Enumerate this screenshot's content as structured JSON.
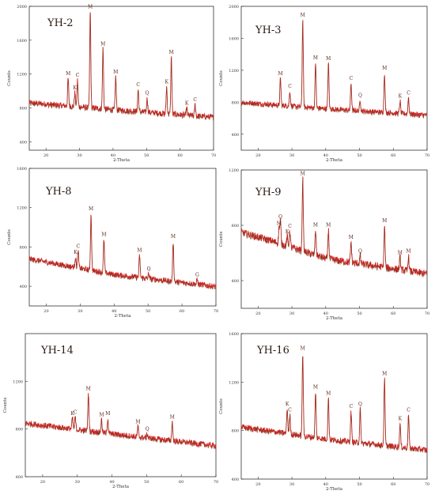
{
  "colors": {
    "pattern_main": "#d62828",
    "pattern_dark": "#6b3a1a",
    "frame": "#333333",
    "label": "#5a2a1a"
  },
  "chart_data": [
    {
      "type": "line",
      "title": "YH-2",
      "xlabel": "2-Theta",
      "ylabel": "Counts",
      "xlim": [
        15,
        70
      ],
      "ylim": [
        300,
        2000
      ],
      "x_ticks": [
        20,
        30,
        40,
        50,
        60,
        70
      ],
      "y_ticks": [
        400,
        800,
        1200,
        1600,
        2000
      ],
      "baseline": [
        [
          15,
          860
        ],
        [
          40,
          780
        ],
        [
          70,
          690
        ]
      ],
      "noise": 35,
      "peaks": [
        {
          "x": 26.6,
          "y": 1150,
          "label": "M"
        },
        {
          "x": 28.6,
          "y": 980,
          "label": "K"
        },
        {
          "x": 29.4,
          "y": 1130,
          "label": "C"
        },
        {
          "x": 33.2,
          "y": 1940,
          "label": "M"
        },
        {
          "x": 37.0,
          "y": 1500,
          "label": "M"
        },
        {
          "x": 40.8,
          "y": 1170,
          "label": "M"
        },
        {
          "x": 47.5,
          "y": 1020,
          "label": "C"
        },
        {
          "x": 50.2,
          "y": 920,
          "label": "Q"
        },
        {
          "x": 56.0,
          "y": 1050,
          "label": "K"
        },
        {
          "x": 57.4,
          "y": 1400,
          "label": "M"
        },
        {
          "x": 62.0,
          "y": 800,
          "label": "K"
        },
        {
          "x": 64.5,
          "y": 840,
          "label": "C"
        }
      ]
    },
    {
      "type": "line",
      "title": "YH-3",
      "xlabel": "2-Theta",
      "ylabel": "Counts",
      "xlim": [
        15,
        70
      ],
      "ylim": [
        200,
        2000
      ],
      "x_ticks": [
        20,
        30,
        40,
        50,
        60,
        70
      ],
      "y_ticks": [
        400,
        800,
        1200,
        1600,
        2000
      ],
      "baseline": [
        [
          15,
          800
        ],
        [
          40,
          720
        ],
        [
          70,
          640
        ]
      ],
      "noise": 32,
      "peaks": [
        {
          "x": 26.6,
          "y": 1100,
          "label": "M"
        },
        {
          "x": 29.4,
          "y": 940,
          "label": "C"
        },
        {
          "x": 33.2,
          "y": 1830,
          "label": "M"
        },
        {
          "x": 37.0,
          "y": 1300,
          "label": "M"
        },
        {
          "x": 40.8,
          "y": 1290,
          "label": "M"
        },
        {
          "x": 47.5,
          "y": 1040,
          "label": "C"
        },
        {
          "x": 50.2,
          "y": 830,
          "label": "Q"
        },
        {
          "x": 57.4,
          "y": 1170,
          "label": "M"
        },
        {
          "x": 62.0,
          "y": 820,
          "label": "K"
        },
        {
          "x": 64.5,
          "y": 860,
          "label": "C"
        }
      ]
    },
    {
      "type": "line",
      "title": "YH-8",
      "xlabel": "2-Theta",
      "ylabel": "Counts",
      "xlim": [
        15,
        70
      ],
      "ylim": [
        200,
        1600
      ],
      "x_ticks": [
        20,
        30,
        40,
        50,
        60,
        70
      ],
      "y_ticks": [
        400,
        800,
        1200,
        1600
      ],
      "baseline": [
        [
          15,
          680
        ],
        [
          40,
          520
        ],
        [
          70,
          400
        ]
      ],
      "noise": 28,
      "peaks": [
        {
          "x": 28.6,
          "y": 700,
          "label": "K"
        },
        {
          "x": 29.4,
          "y": 760,
          "label": "C"
        },
        {
          "x": 33.2,
          "y": 1140,
          "label": "M"
        },
        {
          "x": 37.0,
          "y": 880,
          "label": "M"
        },
        {
          "x": 47.5,
          "y": 720,
          "label": "M"
        },
        {
          "x": 50.2,
          "y": 530,
          "label": "Q"
        },
        {
          "x": 57.4,
          "y": 860,
          "label": "M"
        },
        {
          "x": 64.5,
          "y": 470,
          "label": "G"
        }
      ]
    },
    {
      "type": "line",
      "title": "YH-9",
      "xlabel": "2-Theta",
      "ylabel": "Counts",
      "xlim": [
        15,
        70
      ],
      "ylim": [
        200,
        1200
      ],
      "x_ticks": [
        20,
        30,
        40,
        50,
        60,
        70
      ],
      "y_ticks": [
        400,
        800,
        1200
      ],
      "baseline": [
        [
          15,
          750
        ],
        [
          25,
          680
        ],
        [
          40,
          560
        ],
        [
          70,
          450
        ]
      ],
      "noise": 26,
      "peaks": [
        {
          "x": 26.6,
          "y": 830,
          "label": "Q"
        },
        {
          "x": 26.2,
          "y": 780,
          "label": "M"
        },
        {
          "x": 28.6,
          "y": 720,
          "label": "K"
        },
        {
          "x": 29.4,
          "y": 760,
          "label": "C"
        },
        {
          "x": 33.2,
          "y": 1140,
          "label": "M"
        },
        {
          "x": 37.0,
          "y": 770,
          "label": "M"
        },
        {
          "x": 40.8,
          "y": 770,
          "label": "M"
        },
        {
          "x": 47.5,
          "y": 680,
          "label": "M"
        },
        {
          "x": 50.2,
          "y": 580,
          "label": "Q"
        },
        {
          "x": 57.4,
          "y": 800,
          "label": "M"
        },
        {
          "x": 62.0,
          "y": 570,
          "label": "M"
        },
        {
          "x": 64.5,
          "y": 580,
          "label": "M"
        }
      ]
    },
    {
      "type": "line",
      "title": "YH-14",
      "xlabel": "2-Theta",
      "ylabel": "Counts",
      "xlim": [
        15,
        70
      ],
      "ylim": [
        400,
        1600
      ],
      "x_ticks": [
        20,
        30,
        40,
        50,
        60,
        70
      ],
      "y_ticks": [
        400,
        800,
        1200
      ],
      "baseline": [
        [
          15,
          850
        ],
        [
          40,
          760
        ],
        [
          70,
          660
        ]
      ],
      "noise": 24,
      "peaks": [
        {
          "x": 28.6,
          "y": 890,
          "label": "K"
        },
        {
          "x": 29.4,
          "y": 900,
          "label": "C"
        },
        {
          "x": 33.2,
          "y": 1100,
          "label": "M"
        },
        {
          "x": 37.0,
          "y": 880,
          "label": "M"
        },
        {
          "x": 38.8,
          "y": 890,
          "label": "M"
        },
        {
          "x": 47.5,
          "y": 820,
          "label": "M"
        },
        {
          "x": 50.2,
          "y": 760,
          "label": "Q"
        },
        {
          "x": 57.4,
          "y": 860,
          "label": "M"
        }
      ]
    },
    {
      "type": "line",
      "title": "YH-16",
      "xlabel": "2-Theta",
      "ylabel": "Counts",
      "xlim": [
        15,
        70
      ],
      "ylim": [
        400,
        1600
      ],
      "x_ticks": [
        20,
        30,
        40,
        50,
        60,
        70
      ],
      "y_ticks": [
        400,
        800,
        1200,
        1600
      ],
      "baseline": [
        [
          15,
          830
        ],
        [
          40,
          730
        ],
        [
          70,
          640
        ]
      ],
      "noise": 24,
      "peaks": [
        {
          "x": 28.6,
          "y": 980,
          "label": "K"
        },
        {
          "x": 29.4,
          "y": 930,
          "label": "C"
        },
        {
          "x": 33.2,
          "y": 1440,
          "label": "M"
        },
        {
          "x": 37.0,
          "y": 1120,
          "label": "M"
        },
        {
          "x": 40.8,
          "y": 1070,
          "label": "M"
        },
        {
          "x": 47.5,
          "y": 960,
          "label": "C"
        },
        {
          "x": 50.2,
          "y": 980,
          "label": "Q"
        },
        {
          "x": 57.4,
          "y": 1230,
          "label": "M"
        },
        {
          "x": 62.0,
          "y": 860,
          "label": "K"
        },
        {
          "x": 64.5,
          "y": 930,
          "label": "C"
        }
      ]
    }
  ]
}
